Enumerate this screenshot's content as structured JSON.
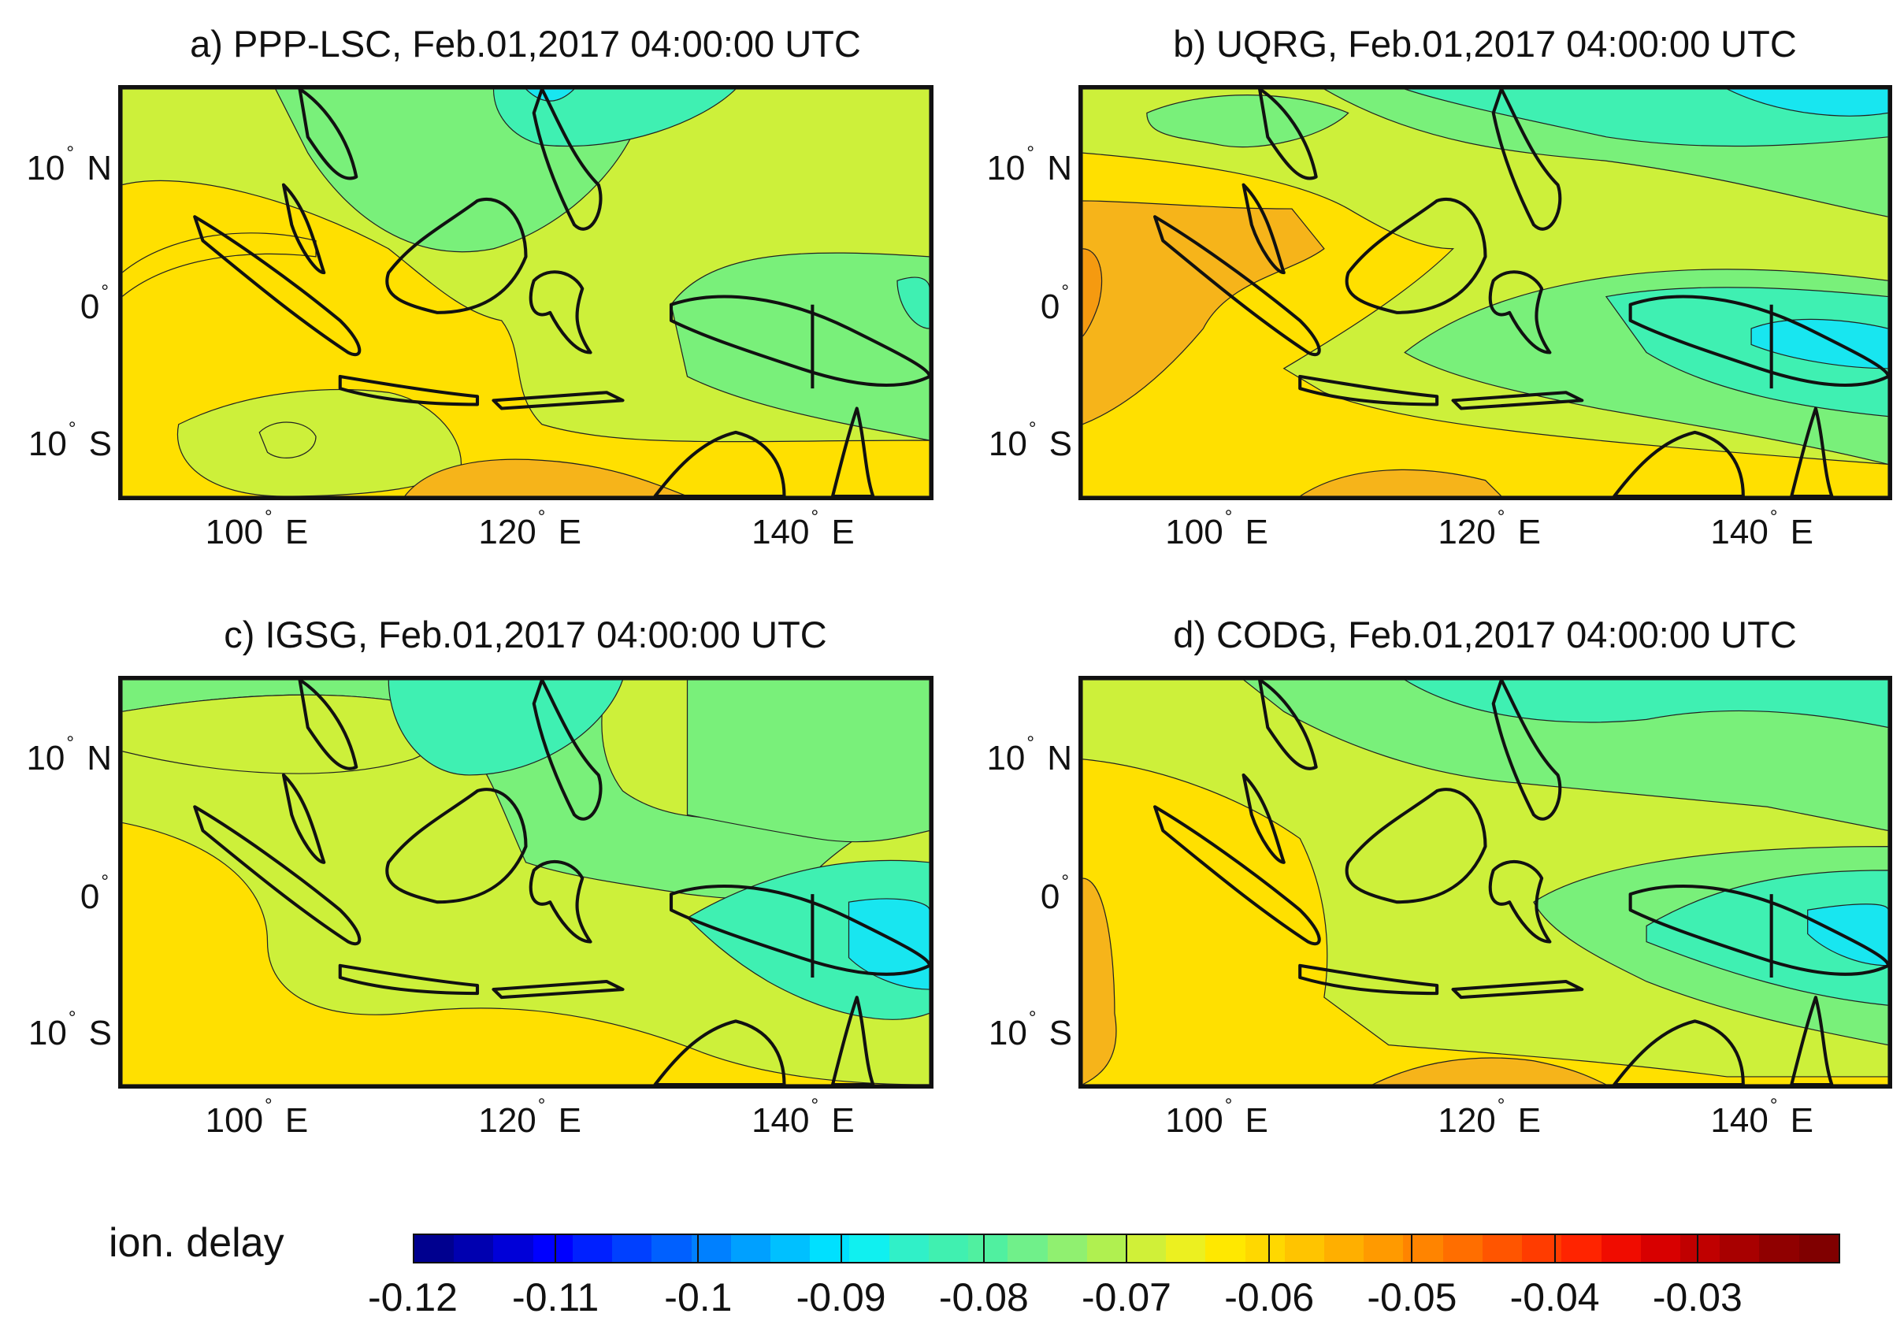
{
  "colors": {
    "c_055": "#f6b41a",
    "c_060": "#ffe000",
    "c_065": "#cdf03a",
    "c_070": "#79f07a",
    "c_075": "#3ff0b2",
    "c_080": "#18e6f0",
    "c_050": "#f59a10"
  },
  "panels": [
    {
      "id": "a",
      "title": "a) PPP-LSC, Feb.01,2017 04:00:00 UTC"
    },
    {
      "id": "b",
      "title": "b) UQRG, Feb.01,2017 04:00:00 UTC"
    },
    {
      "id": "c",
      "title": "c) IGSG, Feb.01,2017 04:00:00 UTC"
    },
    {
      "id": "d",
      "title": "d) CODG, Feb.01,2017 04:00:00 UTC"
    }
  ],
  "axes": {
    "lat_labels": [
      {
        "deg": "10",
        "suffix": "N"
      },
      {
        "deg": "0",
        "suffix": ""
      },
      {
        "deg": "10",
        "suffix": "S"
      }
    ],
    "lon_labels": [
      {
        "deg": "100",
        "suffix": "E"
      },
      {
        "deg": "120",
        "suffix": "E"
      },
      {
        "deg": "140",
        "suffix": "E"
      }
    ]
  },
  "colorbar": {
    "title": "ion. delay",
    "tick_labels": [
      "-0.12",
      "-0.11",
      "-0.1",
      "-0.09",
      "-0.08",
      "-0.07",
      "-0.06",
      "-0.05",
      "-0.04",
      "-0.03"
    ]
  }
}
